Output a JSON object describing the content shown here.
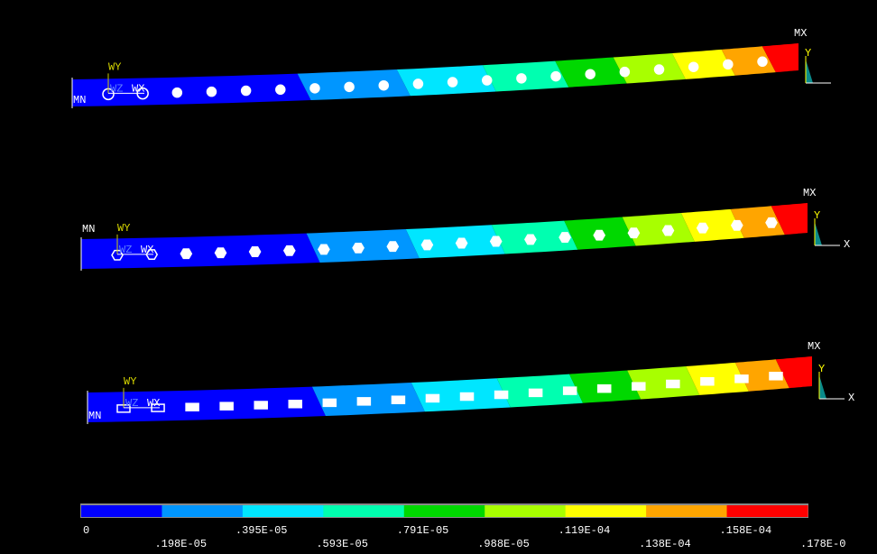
{
  "beams": [
    {
      "min_label": "MN",
      "max_label": "MX",
      "triad": {
        "wy": "WY",
        "wz": "WZ",
        "wx": "WX"
      },
      "axes": {
        "y": "Y"
      }
    },
    {
      "min_label": "MN",
      "max_label": "MX",
      "triad": {
        "wy": "WY",
        "wz": "WZ",
        "wx": "WX"
      },
      "axes": {
        "y": "Y",
        "x": "X"
      }
    },
    {
      "min_label": "MN",
      "max_label": "MX",
      "triad": {
        "wy": "WY",
        "wz": "WZ",
        "wx": "WX"
      },
      "axes": {
        "y": "Y",
        "x": "X"
      }
    }
  ],
  "legend": {
    "labels": [
      "0",
      ".198E-05",
      ".395E-05",
      ".593E-05",
      ".791E-05",
      ".988E-05",
      ".119E-04",
      ".138E-04",
      ".158E-04",
      ".178E-0"
    ]
  }
}
